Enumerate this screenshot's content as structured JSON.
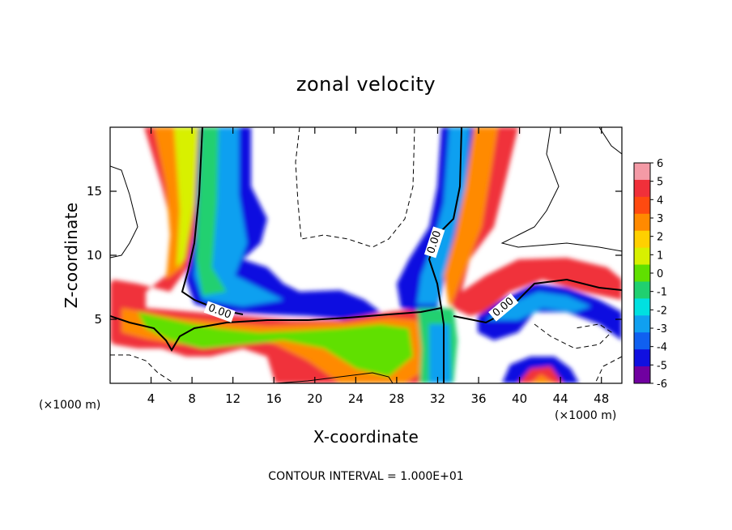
{
  "chart_data": {
    "type": "heatmap",
    "title": "zonal velocity",
    "xlabel": "X-coordinate",
    "ylabel": "Z-coordinate",
    "x_unit": "(×1000 m)",
    "z_unit": "(×1000 m)",
    "xlim": [
      0,
      50
    ],
    "ylim": [
      0,
      20
    ],
    "x_ticks": [
      "4",
      "8",
      "12",
      "16",
      "20",
      "24",
      "28",
      "32",
      "36",
      "40",
      "44",
      "48"
    ],
    "y_ticks": [
      "5",
      "10",
      "15"
    ],
    "colorbar": {
      "range": [
        -6,
        6
      ],
      "ticks": [
        "6",
        "5",
        "4",
        "3",
        "2",
        "1",
        "0",
        "-1",
        "-2",
        "-3",
        "-4",
        "-5",
        "-6"
      ],
      "colors": [
        "#f49aa6",
        "#f0303a",
        "#ff4a10",
        "#ff8a00",
        "#ffd000",
        "#d8f000",
        "#60e000",
        "#20d070",
        "#00e0e0",
        "#10a0f0",
        "#1060f0",
        "#1010e0",
        "#7000a0"
      ]
    },
    "contour_labels": [
      "0.00",
      "0.00",
      "0.00"
    ],
    "annotation": "CONTOUR INTERVAL = 1.000E+01"
  }
}
